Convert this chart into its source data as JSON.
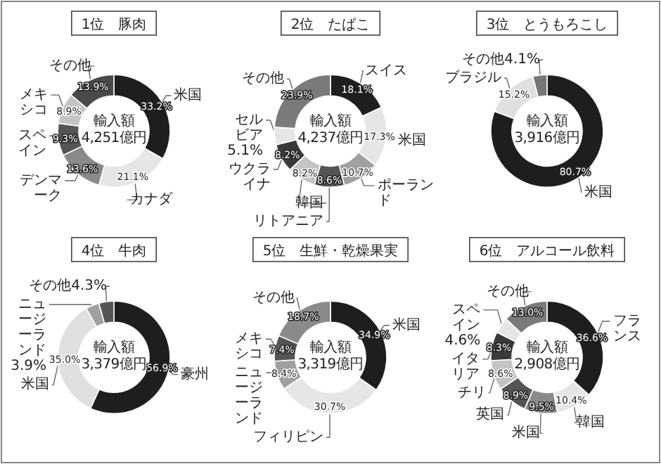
{
  "chart_data": [
    {
      "type": "donut",
      "title": "1位　豚肉",
      "categories": [
        "米国",
        "カナダ",
        "デンマーク",
        "スペイン",
        "メキシコ",
        "その他"
      ],
      "values": [
        33.2,
        21.1,
        13.6,
        9.3,
        8.9,
        13.9
      ],
      "value_labels": [
        "33.2%",
        "21.1%",
        "13.6%",
        "9.3%",
        "8.9%",
        "13.9%"
      ],
      "colors": [
        "#1e1e1e",
        "#e6e6e6",
        "#8a8a8a",
        "#555555",
        "#c4c4c4",
        "#4a4a4a"
      ],
      "annotations": [
        "輸入額",
        "4,251億円"
      ]
    },
    {
      "type": "donut",
      "title": "2位　たばこ",
      "categories": [
        "スイス",
        "米国",
        "ポーランド",
        "リトアニア",
        "韓国",
        "ウクライナ",
        "セルビア",
        "その他"
      ],
      "values": [
        18.1,
        17.3,
        10.7,
        8.6,
        8.2,
        8.2,
        5.1,
        23.9
      ],
      "value_labels": [
        "18.1%",
        "17.3%",
        "10.7%",
        "8.6%",
        "8.2%",
        "8.2%",
        "5.1%",
        "23.9%"
      ],
      "colors": [
        "#1e1e1e",
        "#e6e6e6",
        "#a0a0a0",
        "#555555",
        "#c4c4c4",
        "#3a3a3a",
        "#e6e6e6",
        "#7a7a7a"
      ],
      "annotations": [
        "輸入額",
        "4,237億円"
      ]
    },
    {
      "type": "donut",
      "title": "3位　とうもろこし",
      "categories": [
        "米国",
        "ブラジル",
        "その他"
      ],
      "values": [
        80.7,
        15.2,
        4.1
      ],
      "value_labels": [
        "80.7%",
        "15.2%",
        "4.1%"
      ],
      "colors": [
        "#1e1e1e",
        "#e0e0e0",
        "#777777"
      ],
      "annotations": [
        "輸入額",
        "3,916億円"
      ]
    },
    {
      "type": "donut",
      "title": "4位　牛肉",
      "categories": [
        "豪州",
        "米国",
        "ニュージーランド",
        "その他"
      ],
      "values": [
        56.9,
        35.0,
        3.9,
        4.3
      ],
      "value_labels": [
        "56.9%",
        "35.0%",
        "3.9%",
        "4.3%"
      ],
      "colors": [
        "#1e1e1e",
        "#e0e0e0",
        "#a0a0a0",
        "#555555"
      ],
      "annotations": [
        "輸入額",
        "3,379億円"
      ]
    },
    {
      "type": "donut",
      "title": "5位　生鮮・乾燥果実",
      "categories": [
        "米国",
        "フィリピン",
        "ニュージーランド",
        "メキシコ",
        "その他"
      ],
      "values": [
        34.9,
        30.7,
        8.4,
        7.4,
        18.7
      ],
      "value_labels": [
        "34.9%",
        "30.7%",
        "8.4%",
        "7.4%",
        "18.7%"
      ],
      "colors": [
        "#1e1e1e",
        "#e6e6e6",
        "#a0a0a0",
        "#555555",
        "#8a8a8a"
      ],
      "annotations": [
        "輸入額",
        "3,319億円"
      ]
    },
    {
      "type": "donut",
      "title": "6位　アルコール飲料",
      "categories": [
        "フランス",
        "韓国",
        "米国",
        "英国",
        "チリ",
        "イタリア",
        "スペイン",
        "その他"
      ],
      "values": [
        36.6,
        10.4,
        9.5,
        8.9,
        8.6,
        8.3,
        4.6,
        13.0
      ],
      "value_labels": [
        "36.6%",
        "10.4%",
        "9.5%",
        "8.9%",
        "8.6%",
        "8.3%",
        "4.6%",
        "13.0%"
      ],
      "colors": [
        "#1e1e1e",
        "#e6e6e6",
        "#8a8a8a",
        "#555555",
        "#c4c4c4",
        "#3a3a3a",
        "#e6e6e6",
        "#7a7a7a"
      ],
      "annotations": [
        "輸入額",
        "2,908億円"
      ]
    }
  ]
}
